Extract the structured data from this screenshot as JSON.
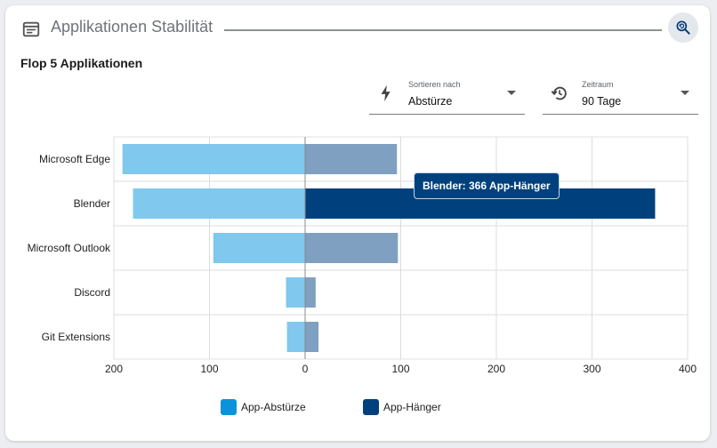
{
  "header": {
    "title": "Applikationen Stabilität",
    "icon": "web-window-icon",
    "action_icon": "search-refresh-icon"
  },
  "subtitle": "Flop 5 Applikationen",
  "filters": {
    "sort": {
      "label": "Sortieren nach",
      "value": "Abstürze",
      "icon": "bolt-icon"
    },
    "range": {
      "label": "Zeitraum",
      "value": "90 Tage",
      "icon": "history-icon"
    }
  },
  "tooltip": {
    "text": "Blender: 366 App-Hänger"
  },
  "legend": [
    {
      "label": "App-Abstürze",
      "color": "#0a93db"
    },
    {
      "label": "App-Hänger",
      "color": "#00417d"
    }
  ],
  "chart_data": {
    "type": "bar",
    "orientation": "horizontal",
    "diverging": true,
    "categories": [
      "Microsoft Edge",
      "Blender",
      "Microsoft Outlook",
      "Discord",
      "Git Extensions"
    ],
    "series": [
      {
        "name": "App-Abstürze",
        "values": [
          191,
          180,
          96,
          20,
          19
        ],
        "color": "#80c8ed",
        "direction": "left"
      },
      {
        "name": "App-Hänger",
        "values": [
          96,
          366,
          97,
          11,
          14
        ],
        "color": "#7fa0c0",
        "highlight_color": "#00417d",
        "direction": "right"
      }
    ],
    "highlighted": {
      "category": "Blender",
      "series": "App-Hänger"
    },
    "x_ticks": [
      "200",
      "100",
      "0",
      "100",
      "200",
      "300",
      "400"
    ],
    "x_range": [
      -200,
      400
    ],
    "grid": true
  }
}
